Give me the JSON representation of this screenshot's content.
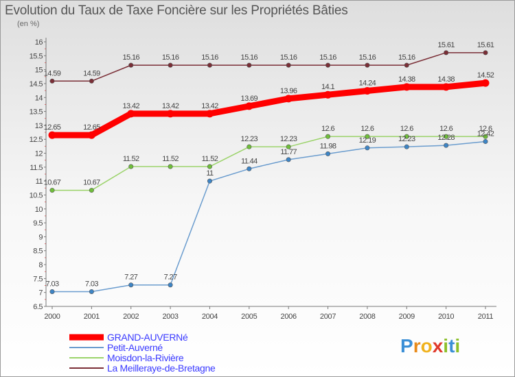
{
  "title": "Evolution du Taux de Taxe Foncière sur les Propriétés Bâties",
  "unit_label": "(en %)",
  "logo": {
    "letters": [
      {
        "ch": "P",
        "color": "#3b8fd6"
      },
      {
        "ch": "r",
        "color": "#e88a1a"
      },
      {
        "ch": "o",
        "color": "#f0b21d"
      },
      {
        "ch": "x",
        "color": "#e0392b"
      },
      {
        "ch": "i",
        "color": "#8cbf2a"
      },
      {
        "ch": "t",
        "color": "#3b8fd6"
      },
      {
        "ch": "i",
        "color": "#8cbf2a"
      }
    ]
  },
  "chart_data": {
    "type": "line",
    "title": "Evolution du Taux de Taxe Foncière sur les Propriétés Bâties",
    "ylabel": "(en %)",
    "xlabel": "",
    "categories": [
      "2000",
      "2001",
      "2002",
      "2003",
      "2004",
      "2005",
      "2006",
      "2007",
      "2008",
      "2009",
      "2010",
      "2011"
    ],
    "ylim": [
      6.5,
      16
    ],
    "yticks": [
      "6.5",
      "7",
      "7.5",
      "8",
      "8.5",
      "9",
      "9.5",
      "10",
      "10.5",
      "11",
      "11.5",
      "12",
      "12.5",
      "13",
      "13.5",
      "14",
      "14.5",
      "15",
      "15.5",
      "16"
    ],
    "grid": false,
    "legend_position": "bottom-left",
    "series": [
      {
        "name": "GRAND-AUVERNé",
        "color": "#ff0000",
        "width": "thick",
        "values": [
          12.65,
          12.65,
          13.42,
          13.42,
          13.42,
          13.69,
          13.96,
          14.1,
          14.24,
          14.38,
          14.38,
          14.52
        ],
        "labels": [
          "12.65",
          "12.65",
          "13.42",
          "13.42",
          "13.42",
          "13.69",
          "13.96",
          "14.1",
          "14.24",
          "14.38",
          "14.38",
          "14.52"
        ]
      },
      {
        "name": "Petit-Auverné",
        "color": "#6a9cce",
        "point_color": "#3d85c6",
        "width": "thin",
        "values": [
          7.03,
          7.03,
          7.27,
          7.27,
          11,
          11.44,
          11.77,
          11.98,
          12.19,
          12.23,
          12.28,
          12.42
        ],
        "labels": [
          "7.03",
          "7.03",
          "7.27",
          "7.27",
          "11",
          "11.44",
          "11.77",
          "11.98",
          "12.19",
          "12.23",
          "12.28",
          "12.42"
        ]
      },
      {
        "name": "Moisdon-la-Rivière",
        "color": "#9bd36a",
        "point_color": "#6fbf3a",
        "width": "thin",
        "values": [
          10.67,
          10.67,
          11.52,
          11.52,
          11.52,
          12.23,
          12.23,
          12.6,
          12.6,
          12.6,
          12.6,
          12.6
        ],
        "labels": [
          "10.67",
          "10.67",
          "11.52",
          "11.52",
          "11.52",
          "12.23",
          "12.23",
          "12.6",
          "12.6",
          "12.6",
          "12.6",
          "12.6"
        ]
      },
      {
        "name": "La Meilleraye-de-Bretagne",
        "color": "#7a2e36",
        "point_color": "#7a2e36",
        "width": "thin",
        "values": [
          14.59,
          14.59,
          15.16,
          15.16,
          15.16,
          15.16,
          15.16,
          15.16,
          15.16,
          15.16,
          15.61,
          15.61
        ],
        "labels": [
          "14.59",
          "14.59",
          "15.16",
          "15.16",
          "15.16",
          "15.16",
          "15.16",
          "15.16",
          "15.16",
          "15.16",
          "15.61",
          "15.61"
        ]
      }
    ]
  }
}
